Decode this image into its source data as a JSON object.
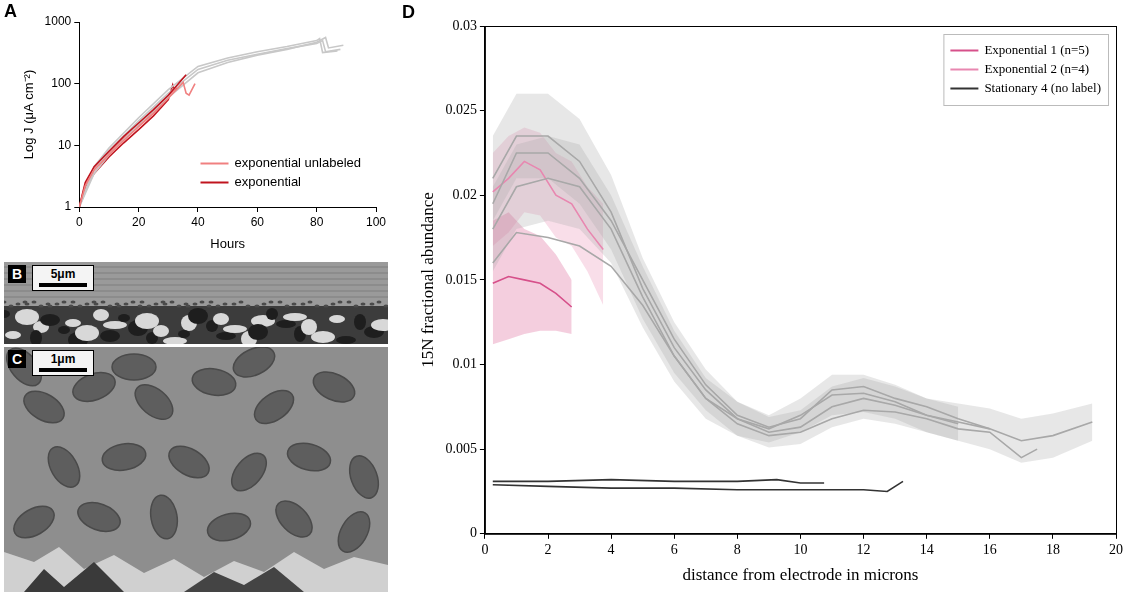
{
  "chart_data": [
    {
      "panel": "A",
      "type": "line",
      "x_label": "Hours",
      "y_label": "Log J (μA cm⁻²)",
      "log": "y",
      "grid": false,
      "legend": "lower right",
      "xlim": [
        0,
        100
      ],
      "xticks": [
        0,
        20,
        40,
        60,
        80,
        100
      ],
      "ylim": [
        1,
        1000
      ],
      "yticks": [
        1,
        10,
        100,
        1000
      ],
      "series": [
        {
          "color": "#c8c8c8",
          "x": [
            0,
            5,
            10,
            20,
            30,
            40,
            50,
            60,
            70,
            80,
            82,
            83,
            88
          ],
          "values": [
            1,
            4,
            8,
            25,
            70,
            170,
            240,
            300,
            370,
            450,
            500,
            330,
            360
          ]
        },
        {
          "color": "#c8c8c8",
          "x": [
            0,
            5,
            10,
            20,
            30,
            40,
            50,
            60,
            70,
            80,
            83,
            84,
            89
          ],
          "values": [
            1,
            3.5,
            7,
            22,
            60,
            150,
            220,
            290,
            360,
            470,
            560,
            380,
            420
          ]
        },
        {
          "color": "#c8c8c8",
          "x": [
            0,
            5,
            10,
            20,
            30,
            40,
            50,
            60,
            70,
            80,
            81,
            82,
            87
          ],
          "values": [
            1,
            4.5,
            9,
            28,
            80,
            190,
            260,
            330,
            400,
            500,
            540,
            320,
            340
          ]
        },
        {
          "name": "exponential unlabeled",
          "color": "#f08080",
          "x": [
            0,
            2,
            5,
            10,
            15,
            20,
            25,
            30,
            35,
            36,
            37,
            39
          ],
          "values": [
            1,
            2.2,
            4,
            7,
            12,
            20,
            33,
            58,
            105,
            70,
            65,
            100
          ]
        },
        {
          "color": "#f08080",
          "x": [
            0,
            2,
            5,
            10,
            15,
            20,
            25,
            30,
            33
          ],
          "values": [
            1,
            2.3,
            4.2,
            7.5,
            13,
            21,
            35,
            62,
            90
          ]
        },
        {
          "name": "exponential",
          "color": "#c0141e",
          "x": [
            0,
            2,
            5,
            10,
            15,
            20,
            25,
            30,
            33,
            36
          ],
          "values": [
            1,
            2.5,
            4.5,
            8,
            14,
            23,
            38,
            65,
            95,
            140
          ]
        },
        {
          "color": "#c0141e",
          "x": [
            0,
            2,
            5,
            10,
            15,
            20,
            25,
            30,
            31.5,
            32,
            33
          ],
          "values": [
            1,
            2,
            3.5,
            6.5,
            11,
            18,
            30,
            55,
            95,
            80,
            85
          ]
        }
      ]
    },
    {
      "panel": "D",
      "type": "line",
      "x_label": "distance from electrode in microns",
      "y_label": "15N fractional abundance",
      "grid": false,
      "legend": "upper right",
      "xlim": [
        0,
        20
      ],
      "xticks": [
        0,
        2,
        4,
        6,
        8,
        10,
        12,
        14,
        16,
        18,
        20
      ],
      "ylim": [
        0,
        0.03
      ],
      "yticks": [
        0,
        0.005,
        0.01,
        0.015,
        0.02,
        0.025,
        0.03
      ],
      "series": [
        {
          "color": "#a8a8a8",
          "x": [
            0.25,
            1,
            2,
            3,
            4,
            5,
            6,
            7,
            8,
            9,
            10,
            11,
            12,
            13,
            14,
            15
          ],
          "values": [
            0.021,
            0.0235,
            0.0235,
            0.022,
            0.019,
            0.0145,
            0.011,
            0.0085,
            0.0068,
            0.0062,
            0.007,
            0.0082,
            0.0083,
            0.0078,
            0.007,
            0.0065
          ],
          "lower": [
            0.0185,
            0.021,
            0.021,
            0.0195,
            0.0168,
            0.0127,
            0.0095,
            0.0073,
            0.0058,
            0.0054,
            0.006,
            0.007,
            0.0072,
            0.0068,
            0.006,
            0.0055
          ],
          "upper": [
            0.0235,
            0.026,
            0.026,
            0.0245,
            0.0212,
            0.0163,
            0.0125,
            0.0097,
            0.0078,
            0.007,
            0.008,
            0.0094,
            0.0094,
            0.0088,
            0.008,
            0.0075
          ]
        },
        {
          "color": "#a8a8a8",
          "x": [
            0.25,
            1,
            2,
            3,
            4,
            5,
            6,
            7,
            8,
            9,
            10,
            11,
            12,
            13,
            14,
            15,
            16,
            17,
            18,
            19.25
          ],
          "values": [
            0.018,
            0.0205,
            0.021,
            0.0205,
            0.018,
            0.014,
            0.0105,
            0.008,
            0.0068,
            0.006,
            0.0063,
            0.0075,
            0.008,
            0.0076,
            0.007,
            0.0066,
            0.0062,
            0.0055,
            0.0058,
            0.0066
          ],
          "lower": [
            0.0155,
            0.018,
            0.0185,
            0.018,
            0.016,
            0.0122,
            0.009,
            0.0068,
            0.0058,
            0.0051,
            0.0053,
            0.0063,
            0.0068,
            0.0065,
            0.006,
            0.0055,
            0.005,
            0.0042,
            0.0045,
            0.0055
          ],
          "upper": [
            0.0205,
            0.023,
            0.0235,
            0.023,
            0.02,
            0.0158,
            0.012,
            0.0092,
            0.0078,
            0.0069,
            0.0073,
            0.0087,
            0.0092,
            0.0087,
            0.008,
            0.0077,
            0.0074,
            0.0068,
            0.0071,
            0.0077
          ]
        },
        {
          "color": "#a8a8a8",
          "x": [
            0.25,
            1,
            2,
            3,
            4,
            5,
            6,
            7,
            8,
            9,
            10,
            11,
            12,
            13,
            14,
            15,
            16,
            17,
            17.5
          ],
          "values": [
            0.016,
            0.0178,
            0.0175,
            0.017,
            0.0158,
            0.0135,
            0.0105,
            0.008,
            0.0065,
            0.0058,
            0.006,
            0.0068,
            0.0073,
            0.0072,
            0.0068,
            0.0062,
            0.006,
            0.0045,
            0.005
          ]
        },
        {
          "color": "#a8a8a8",
          "x": [
            0.25,
            1,
            2,
            3,
            4,
            5,
            6,
            7,
            8,
            9,
            10,
            11,
            12,
            13,
            14,
            15,
            16
          ],
          "values": [
            0.0195,
            0.0225,
            0.0225,
            0.021,
            0.0185,
            0.015,
            0.0115,
            0.0088,
            0.007,
            0.0063,
            0.0068,
            0.0085,
            0.0087,
            0.008,
            0.0075,
            0.0068,
            0.0062
          ]
        },
        {
          "name": "Exponential 1 (n=5)",
          "color": "#d6508a",
          "x": [
            0.25,
            0.75,
            1.25,
            1.75,
            2.25,
            2.75
          ],
          "values": [
            0.0148,
            0.0152,
            0.015,
            0.0148,
            0.0142,
            0.0134
          ],
          "lower": [
            0.0112,
            0.0115,
            0.0118,
            0.012,
            0.012,
            0.0118
          ],
          "upper": [
            0.0185,
            0.019,
            0.018,
            0.0176,
            0.0165,
            0.015
          ]
        },
        {
          "name": "Exponential 2 (n=4)",
          "color": "#e887b0",
          "x": [
            0.25,
            0.75,
            1.25,
            1.75,
            2.25,
            2.75,
            3.25,
            3.75
          ],
          "values": [
            0.0202,
            0.021,
            0.022,
            0.0215,
            0.02,
            0.0195,
            0.018,
            0.0168
          ],
          "lower": [
            0.017,
            0.0178,
            0.019,
            0.0188,
            0.0175,
            0.017,
            0.0155,
            0.0135
          ],
          "upper": [
            0.0225,
            0.0235,
            0.024,
            0.0237,
            0.0225,
            0.022,
            0.0205,
            0.0195
          ]
        },
        {
          "name": "Stationary 4 (no label)",
          "color": "#333333",
          "x": [
            0.25,
            2,
            4,
            6,
            8,
            9.25,
            10,
            10.75
          ],
          "values": [
            0.0031,
            0.0031,
            0.0032,
            0.0031,
            0.0031,
            0.0032,
            0.003,
            0.003
          ]
        },
        {
          "color": "#333333",
          "x": [
            0.25,
            2,
            4,
            6,
            8,
            10,
            12,
            12.75,
            13.25
          ],
          "values": [
            0.0029,
            0.0028,
            0.0027,
            0.0027,
            0.0026,
            0.0026,
            0.0026,
            0.0025,
            0.0031
          ]
        }
      ]
    }
  ],
  "images": [
    {
      "panel": "B",
      "scale_bar": "5μm"
    },
    {
      "panel": "C",
      "scale_bar": "1μm"
    }
  ]
}
